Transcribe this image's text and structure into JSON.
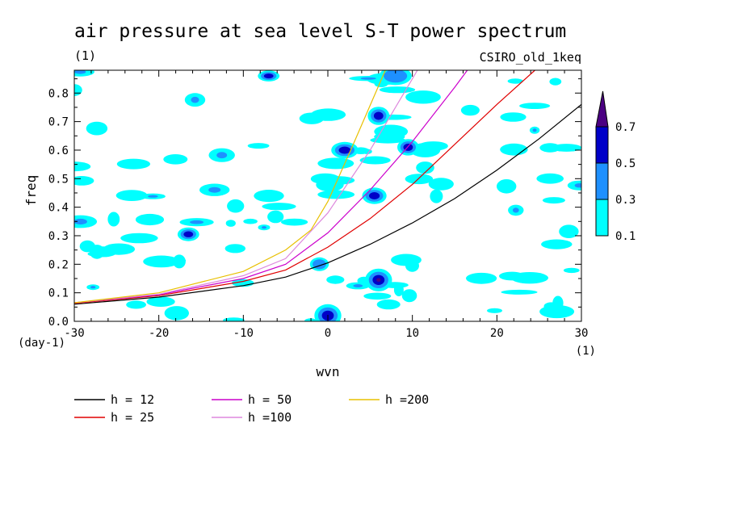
{
  "chart_data": {
    "type": "heatmap",
    "title": "air pressure at sea level S-T power spectrum",
    "units": "(1)",
    "model": "CSIRO_old_1keq",
    "xlabel": "wvn",
    "xunits": "(1)",
    "ylabel": "freq",
    "yunits": "(day-1)",
    "xlim": [
      -30,
      30
    ],
    "ylim": [
      0,
      0.88
    ],
    "xticks": [
      "-30",
      "-20",
      "-10",
      "0",
      "10",
      "20",
      "30"
    ],
    "yticks": [
      "0.0",
      "0.1",
      "0.2",
      "0.3",
      "0.4",
      "0.5",
      "0.6",
      "0.7",
      "0.8"
    ],
    "colorbar": {
      "levels": [
        "0.1",
        "0.3",
        "0.5",
        "0.7"
      ],
      "colors": [
        "#00ffff",
        "#1e90ff",
        "#0000c8",
        "#4b0082"
      ]
    },
    "dispersion_curves": [
      {
        "name": "h = 12",
        "color": "#000000",
        "x": [
          -30,
          -20,
          -10,
          -5,
          0,
          5,
          10,
          15,
          20,
          25,
          30
        ],
        "y": [
          0.06,
          0.085,
          0.125,
          0.155,
          0.205,
          0.27,
          0.345,
          0.43,
          0.53,
          0.64,
          0.76
        ]
      },
      {
        "name": "h = 25",
        "color": "#e00000",
        "x": [
          -30,
          -20,
          -10,
          -5,
          0,
          5,
          10,
          15,
          20,
          24.5
        ],
        "y": [
          0.063,
          0.09,
          0.14,
          0.18,
          0.26,
          0.36,
          0.48,
          0.62,
          0.76,
          0.88
        ]
      },
      {
        "name": "h = 50",
        "color": "#cc00cc",
        "x": [
          -30,
          -20,
          -10,
          -5,
          0,
          5,
          10,
          15,
          16.5
        ],
        "y": [
          0.065,
          0.093,
          0.15,
          0.2,
          0.31,
          0.46,
          0.63,
          0.82,
          0.88
        ]
      },
      {
        "name": "h =100",
        "color": "#dd88dd",
        "x": [
          -30,
          -20,
          -10,
          -5,
          0,
          5,
          10,
          10.6
        ],
        "y": [
          0.065,
          0.095,
          0.16,
          0.22,
          0.38,
          0.6,
          0.85,
          0.88
        ]
      },
      {
        "name": "h =200",
        "color": "#e8c000",
        "x": [
          -30,
          -20,
          -10,
          -5,
          -2,
          0,
          3,
          6.8
        ],
        "y": [
          0.065,
          0.1,
          0.175,
          0.25,
          0.32,
          0.42,
          0.62,
          0.88
        ]
      }
    ],
    "blobs": [
      {
        "x": 0,
        "y": 0.02,
        "rx": 1.0,
        "ry": 0.025,
        "level": 2
      },
      {
        "x": 6,
        "y": 0.145,
        "rx": 1.0,
        "ry": 0.025,
        "level": 3
      },
      {
        "x": 6,
        "y": 0.72,
        "rx": 0.8,
        "ry": 0.02,
        "level": 2
      },
      {
        "x": 2,
        "y": 0.6,
        "rx": 1.0,
        "ry": 0.018,
        "level": 2
      },
      {
        "x": 5.5,
        "y": 0.44,
        "rx": 0.9,
        "ry": 0.018,
        "level": 2
      },
      {
        "x": 9.5,
        "y": 0.61,
        "rx": 0.8,
        "ry": 0.018,
        "level": 2
      },
      {
        "x": -7,
        "y": 0.86,
        "rx": 0.8,
        "ry": 0.012,
        "level": 2
      },
      {
        "x": -16.5,
        "y": 0.305,
        "rx": 0.8,
        "ry": 0.015,
        "level": 2
      },
      {
        "x": -1,
        "y": 0.2,
        "rx": 0.7,
        "ry": 0.015,
        "level": 1
      },
      {
        "x": 8,
        "y": 0.86,
        "rx": 1.2,
        "ry": 0.02,
        "level": 1
      }
    ]
  },
  "legend": [
    {
      "label": "h = 12",
      "color": "#000000"
    },
    {
      "label": "h = 25",
      "color": "#e00000"
    },
    {
      "label": "h = 50",
      "color": "#cc00cc"
    },
    {
      "label": "h =100",
      "color": "#dd88dd"
    },
    {
      "label": "h =200",
      "color": "#e8c000"
    }
  ]
}
